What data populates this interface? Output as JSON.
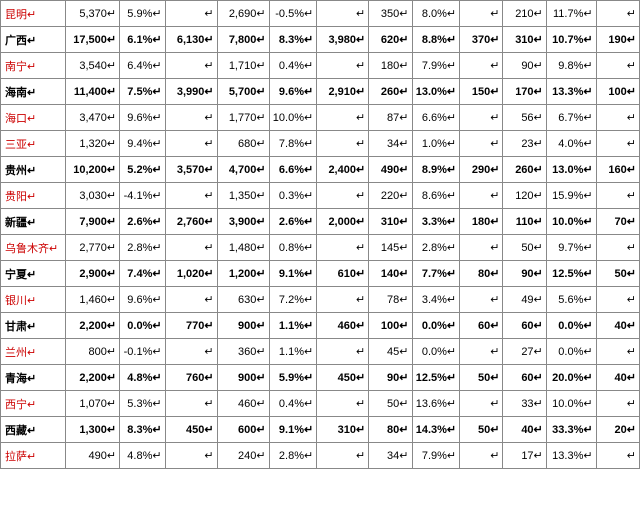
{
  "table": {
    "cell_arrow": "↵",
    "columns": 13,
    "column_classes": [
      "c0",
      "c1",
      "c2",
      "c3",
      "c4",
      "c5",
      "c6",
      "c7",
      "c8",
      "c9",
      "c10",
      "c11",
      "c12"
    ],
    "rows": [
      {
        "bold": false,
        "region_color": "red",
        "cells": [
          "昆明",
          "5,370",
          "5.9%",
          "",
          "2,690",
          "-0.5%",
          "",
          "350",
          "8.0%",
          "",
          "210",
          "11.7%",
          ""
        ]
      },
      {
        "bold": true,
        "region_color": "black",
        "cells": [
          "广西",
          "17,500",
          "6.1%",
          "6,130",
          "7,800",
          "8.3%",
          "3,980",
          "620",
          "8.8%",
          "370",
          "310",
          "10.7%",
          "190"
        ]
      },
      {
        "bold": false,
        "region_color": "red",
        "cells": [
          "南宁",
          "3,540",
          "6.4%",
          "",
          "1,710",
          "0.4%",
          "",
          "180",
          "7.9%",
          "",
          "90",
          "9.8%",
          ""
        ]
      },
      {
        "bold": true,
        "region_color": "black",
        "cells": [
          "海南",
          "11,400",
          "7.5%",
          "3,990",
          "5,700",
          "9.6%",
          "2,910",
          "260",
          "13.0%",
          "150",
          "170",
          "13.3%",
          "100"
        ]
      },
      {
        "bold": false,
        "region_color": "red",
        "cells": [
          "海口",
          "3,470",
          "9.6%",
          "",
          "1,770",
          "10.0%",
          "",
          "87",
          "6.6%",
          "",
          "56",
          "6.7%",
          ""
        ]
      },
      {
        "bold": false,
        "region_color": "red",
        "cells": [
          "三亚",
          "1,320",
          "9.4%",
          "",
          "680",
          "7.8%",
          "",
          "34",
          "1.0%",
          "",
          "23",
          "4.0%",
          ""
        ]
      },
      {
        "bold": true,
        "region_color": "black",
        "cells": [
          "贵州",
          "10,200",
          "5.2%",
          "3,570",
          "4,700",
          "6.6%",
          "2,400",
          "490",
          "8.9%",
          "290",
          "260",
          "13.0%",
          "160"
        ]
      },
      {
        "bold": false,
        "region_color": "red",
        "cells": [
          "贵阳",
          "3,030",
          "-4.1%",
          "",
          "1,350",
          "0.3%",
          "",
          "220",
          "8.6%",
          "",
          "120",
          "15.9%",
          ""
        ]
      },
      {
        "bold": true,
        "region_color": "black",
        "cells": [
          "新疆",
          "7,900",
          "2.6%",
          "2,760",
          "3,900",
          "2.6%",
          "2,000",
          "310",
          "3.3%",
          "180",
          "110",
          "10.0%",
          "70"
        ]
      },
      {
        "bold": false,
        "region_color": "red",
        "cells": [
          "乌鲁木齐",
          "2,770",
          "2.8%",
          "",
          "1,480",
          "0.8%",
          "",
          "145",
          "2.8%",
          "",
          "50",
          "9.7%",
          ""
        ]
      },
      {
        "bold": true,
        "region_color": "black",
        "cells": [
          "宁夏",
          "2,900",
          "7.4%",
          "1,020",
          "1,200",
          "9.1%",
          "610",
          "140",
          "7.7%",
          "80",
          "90",
          "12.5%",
          "50"
        ]
      },
      {
        "bold": false,
        "region_color": "red",
        "cells": [
          "银川",
          "1,460",
          "9.6%",
          "",
          "630",
          "7.2%",
          "",
          "78",
          "3.4%",
          "",
          "49",
          "5.6%",
          ""
        ]
      },
      {
        "bold": true,
        "region_color": "black",
        "cells": [
          "甘肃",
          "2,200",
          "0.0%",
          "770",
          "900",
          "1.1%",
          "460",
          "100",
          "0.0%",
          "60",
          "60",
          "0.0%",
          "40"
        ]
      },
      {
        "bold": false,
        "region_color": "red",
        "cells": [
          "兰州",
          "800",
          "-0.1%",
          "",
          "360",
          "1.1%",
          "",
          "45",
          "0.0%",
          "",
          "27",
          "0.0%",
          ""
        ]
      },
      {
        "bold": true,
        "region_color": "black",
        "cells": [
          "青海",
          "2,200",
          "4.8%",
          "760",
          "900",
          "5.9%",
          "450",
          "90",
          "12.5%",
          "50",
          "60",
          "20.0%",
          "40"
        ]
      },
      {
        "bold": false,
        "region_color": "red",
        "cells": [
          "西宁",
          "1,070",
          "5.3%",
          "",
          "460",
          "0.4%",
          "",
          "50",
          "13.6%",
          "",
          "33",
          "10.0%",
          ""
        ]
      },
      {
        "bold": true,
        "region_color": "black",
        "cells": [
          "西藏",
          "1,300",
          "8.3%",
          "450",
          "600",
          "9.1%",
          "310",
          "80",
          "14.3%",
          "50",
          "40",
          "33.3%",
          "20"
        ]
      },
      {
        "bold": false,
        "region_color": "red",
        "cells": [
          "拉萨",
          "490",
          "4.8%",
          "",
          "240",
          "2.8%",
          "",
          "34",
          "7.9%",
          "",
          "17",
          "13.3%",
          ""
        ]
      }
    ]
  }
}
